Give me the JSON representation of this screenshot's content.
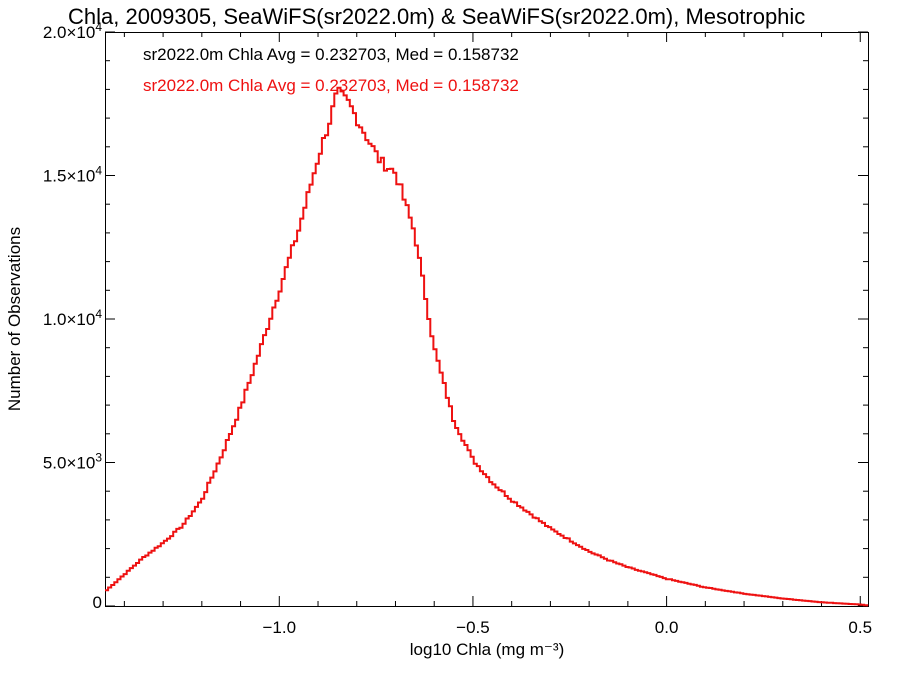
{
  "chart_data": {
    "type": "histogram-step",
    "title": "Chla, 2009305, SeaWiFS(sr2022.0m) & SeaWiFS(sr2022.0m), Mesotrophic",
    "xlabel": "log10 Chla (mg m⁻³)",
    "ylabel": "Number of Observations",
    "xlim": [
      -1.45,
      0.52
    ],
    "ylim": [
      0,
      20000
    ],
    "xticks": [
      {
        "value": -1.0,
        "label": "−1.0"
      },
      {
        "value": -0.5,
        "label": "−0.5"
      },
      {
        "value": 0.0,
        "label": "0.0"
      },
      {
        "value": 0.5,
        "label": "0.5"
      }
    ],
    "yticks": [
      {
        "value": 0,
        "mant": "0",
        "exp": ""
      },
      {
        "value": 5000,
        "mant": "5.0×10",
        "exp": "3"
      },
      {
        "value": 10000,
        "mant": "1.0×10",
        "exp": "4"
      },
      {
        "value": 15000,
        "mant": "1.5×10",
        "exp": "4"
      },
      {
        "value": 20000,
        "mant": "2.0×10",
        "exp": "4"
      }
    ],
    "annotations": [
      {
        "text": "sr2022.0m Chla Avg = 0.232703, Med = 0.158732",
        "color": "#000000"
      },
      {
        "text": "sr2022.0m Chla Avg = 0.232703, Med = 0.158732",
        "color": "#ee1111"
      }
    ],
    "series": [
      {
        "color": "#ee1111",
        "x": [
          -1.45,
          -1.4,
          -1.35,
          -1.3,
          -1.25,
          -1.2,
          -1.15,
          -1.1,
          -1.05,
          -1.0,
          -0.95,
          -0.9,
          -0.87,
          -0.85,
          -0.82,
          -0.78,
          -0.74,
          -0.7,
          -0.65,
          -0.6,
          -0.55,
          -0.5,
          -0.45,
          -0.4,
          -0.35,
          -0.3,
          -0.25,
          -0.2,
          -0.15,
          -0.1,
          -0.05,
          0.0,
          0.1,
          0.2,
          0.3,
          0.4,
          0.5,
          0.52
        ],
        "y": [
          500,
          1100,
          1700,
          2200,
          2800,
          3700,
          5200,
          6900,
          8900,
          11000,
          13100,
          15600,
          16900,
          17900,
          17500,
          16500,
          15500,
          15100,
          13000,
          9000,
          6500,
          5100,
          4300,
          3700,
          3200,
          2700,
          2300,
          1900,
          1600,
          1350,
          1150,
          950,
          650,
          430,
          260,
          130,
          50,
          20
        ]
      }
    ]
  }
}
